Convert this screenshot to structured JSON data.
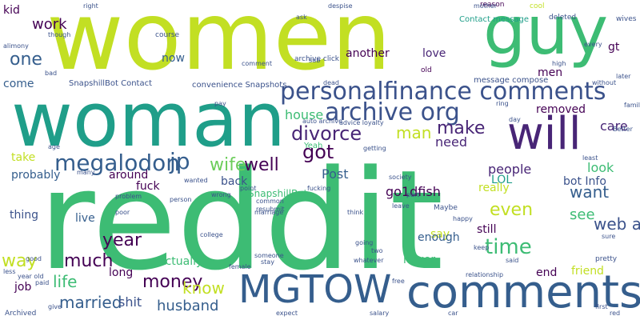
{
  "palette": {
    "yellow_green": "#c2df23",
    "green": "#3dbc74",
    "teal": "#1f9e89",
    "blue": "#355e8d",
    "purple": "#482576",
    "dark_purple": "#440154",
    "slate": "#3b528b",
    "light_green": "#6ccd5a"
  },
  "words": [
    {
      "text": "reddit",
      "color": "#3dbc74"
    },
    {
      "text": "women",
      "color": "#c2df23"
    },
    {
      "text": "woman",
      "color": "#1f9e89"
    },
    {
      "text": "guy",
      "color": "#3dbc74"
    },
    {
      "text": "comments",
      "color": "#355e8d"
    },
    {
      "text": "MGTOW",
      "color": "#355e8d"
    },
    {
      "text": "will",
      "color": "#482576"
    },
    {
      "text": "personalfinance comments",
      "color": "#3b528b"
    },
    {
      "text": "archive org",
      "color": "#3b528b"
    },
    {
      "text": "megalodon",
      "color": "#355e8d"
    },
    {
      "text": "jp",
      "color": "#355e8d"
    },
    {
      "text": "divorce",
      "color": "#482576"
    },
    {
      "text": "got",
      "color": "#440154"
    },
    {
      "text": "make",
      "color": "#482576"
    },
    {
      "text": "one",
      "color": "#355e8d"
    },
    {
      "text": "work",
      "color": "#440154"
    },
    {
      "text": "wife",
      "color": "#6ccd5a"
    },
    {
      "text": "well",
      "color": "#440154"
    },
    {
      "text": "man",
      "color": "#c2df23"
    },
    {
      "text": "house",
      "color": "#3dbc74"
    },
    {
      "text": "year",
      "color": "#440154"
    },
    {
      "text": "much",
      "color": "#440154"
    },
    {
      "text": "way",
      "color": "#c2df23"
    },
    {
      "text": "life",
      "color": "#3dbc74"
    },
    {
      "text": "money",
      "color": "#440154"
    },
    {
      "text": "know",
      "color": "#c2df23"
    },
    {
      "text": "married",
      "color": "#355e8d"
    },
    {
      "text": "shit",
      "color": "#3b528b"
    },
    {
      "text": "husband",
      "color": "#355e8d"
    },
    {
      "text": "time",
      "color": "#3dbc74"
    },
    {
      "text": "even",
      "color": "#c2df23"
    },
    {
      "text": "want",
      "color": "#355e8d"
    },
    {
      "text": "see",
      "color": "#3dbc74"
    },
    {
      "text": "web archive",
      "color": "#3b528b"
    },
    {
      "text": "people",
      "color": "#482576"
    },
    {
      "text": "look",
      "color": "#3dbc74"
    },
    {
      "text": "care",
      "color": "#482576"
    },
    {
      "text": "need",
      "color": "#482576"
    },
    {
      "text": "Post",
      "color": "#355e8d"
    },
    {
      "text": "go1dfish",
      "color": "#440154"
    },
    {
      "text": "bot Info",
      "color": "#3b528b"
    },
    {
      "text": "fuck",
      "color": "#440154"
    },
    {
      "text": "around",
      "color": "#440154"
    },
    {
      "text": "probably",
      "color": "#355e8d"
    },
    {
      "text": "thing",
      "color": "#3b528b"
    },
    {
      "text": "live",
      "color": "#355e8d"
    },
    {
      "text": "back",
      "color": "#3b528b"
    },
    {
      "text": "actually",
      "color": "#3dbc74"
    },
    {
      "text": "long",
      "color": "#440154"
    },
    {
      "text": "job",
      "color": "#440154"
    },
    {
      "text": "friend",
      "color": "#c2df23"
    },
    {
      "text": "end",
      "color": "#440154"
    },
    {
      "text": "still",
      "color": "#440154"
    },
    {
      "text": "say",
      "color": "#c2df23"
    },
    {
      "text": "never",
      "color": "#3dbc74"
    },
    {
      "text": "enough",
      "color": "#355e8d"
    },
    {
      "text": "really",
      "color": "#c2df23"
    },
    {
      "text": "LOL",
      "color": "#1f9e89"
    },
    {
      "text": "removed",
      "color": "#440154"
    },
    {
      "text": "another",
      "color": "#440154"
    },
    {
      "text": "love",
      "color": "#482576"
    },
    {
      "text": "men",
      "color": "#440154"
    },
    {
      "text": "gt",
      "color": "#440154"
    },
    {
      "text": "now",
      "color": "#355e8d"
    },
    {
      "text": "come",
      "color": "#355e8d"
    },
    {
      "text": "kid",
      "color": "#440154"
    },
    {
      "text": "take",
      "color": "#c2df23"
    },
    {
      "text": "SnapshillBot",
      "color": "#3dbc74"
    },
    {
      "text": "SnapshillBot Contact",
      "color": "#3b528b"
    },
    {
      "text": "convenience Snapshots",
      "color": "#3b528b"
    },
    {
      "text": "Contact message",
      "color": "#1f9e89"
    },
    {
      "text": "message compose",
      "color": "#3b528b"
    },
    {
      "text": "archive click",
      "color": "#3b528b"
    },
    {
      "text": "old",
      "color": "#440154"
    },
    {
      "text": "course",
      "color": "#3b528b"
    },
    {
      "text": "reason",
      "color": "#440154"
    },
    {
      "text": "deleted",
      "color": "#3b528b"
    },
    {
      "text": "wives",
      "color": "#3b528b"
    },
    {
      "text": "cool",
      "color": "#c2df23"
    },
    {
      "text": "mother",
      "color": "#3b528b"
    },
    {
      "text": "despise",
      "color": "#3b528b"
    },
    {
      "text": "ask",
      "color": "#3b528b"
    },
    {
      "text": "right",
      "color": "#3b528b"
    },
    {
      "text": "though",
      "color": "#3b528b"
    },
    {
      "text": "alimony",
      "color": "#3b528b"
    },
    {
      "text": "sub",
      "color": "#3b528b"
    },
    {
      "text": "comment",
      "color": "#3b528b"
    },
    {
      "text": "auto archive",
      "color": "#3b528b"
    },
    {
      "text": "advice loyalty",
      "color": "#3b528b"
    },
    {
      "text": "Yeah",
      "color": "#3dbc74"
    },
    {
      "text": "fucking",
      "color": "#3b528b"
    },
    {
      "text": "society",
      "color": "#3b528b"
    },
    {
      "text": "getting",
      "color": "#3b528b"
    },
    {
      "text": "leave",
      "color": "#3b528b"
    },
    {
      "text": "part",
      "color": "#3b528b"
    },
    {
      "text": "Maybe",
      "color": "#3b528b"
    },
    {
      "text": "happy",
      "color": "#3b528b"
    },
    {
      "text": "keep",
      "color": "#3b528b"
    },
    {
      "text": "pretty",
      "color": "#3b528b"
    },
    {
      "text": "sure",
      "color": "#3b528b"
    },
    {
      "text": "said",
      "color": "#3b528b"
    },
    {
      "text": "Better",
      "color": "#3b528b"
    },
    {
      "text": "family",
      "color": "#3b528b"
    },
    {
      "text": "later",
      "color": "#3b528b"
    },
    {
      "text": "without",
      "color": "#3b528b"
    },
    {
      "text": "high",
      "color": "#3b528b"
    },
    {
      "text": "every",
      "color": "#3b528b"
    },
    {
      "text": "ring",
      "color": "#3b528b"
    },
    {
      "text": "least",
      "color": "#3b528b"
    },
    {
      "text": "resubmit",
      "color": "#3b528b"
    },
    {
      "text": "wanted",
      "color": "#3b528b"
    },
    {
      "text": "many",
      "color": "#3b528b"
    },
    {
      "text": "problem",
      "color": "#3b528b"
    },
    {
      "text": "poor",
      "color": "#3b528b"
    },
    {
      "text": "wrong",
      "color": "#3b528b"
    },
    {
      "text": "college",
      "color": "#3b528b"
    },
    {
      "text": "good",
      "color": "#3b528b"
    },
    {
      "text": "someone",
      "color": "#3b528b"
    },
    {
      "text": "stay",
      "color": "#3b528b"
    },
    {
      "text": "two",
      "color": "#3b528b"
    },
    {
      "text": "whatever",
      "color": "#3b528b"
    },
    {
      "text": "going",
      "color": "#3b528b"
    },
    {
      "text": "think",
      "color": "#3b528b"
    },
    {
      "text": "marriage",
      "color": "#3b528b"
    },
    {
      "text": "common",
      "color": "#3b528b"
    },
    {
      "text": "point",
      "color": "#3b528b"
    },
    {
      "text": "relationship",
      "color": "#3b528b"
    },
    {
      "text": "free",
      "color": "#3b528b"
    },
    {
      "text": "expect",
      "color": "#3b528b"
    },
    {
      "text": "salary",
      "color": "#3b528b"
    },
    {
      "text": "car",
      "color": "#3b528b"
    },
    {
      "text": "first",
      "color": "#3b528b"
    },
    {
      "text": "red",
      "color": "#3b528b"
    },
    {
      "text": "Archived",
      "color": "#3b528b"
    },
    {
      "text": "give",
      "color": "#3b528b"
    },
    {
      "text": "paid",
      "color": "#3b528b"
    },
    {
      "text": "less",
      "color": "#3b528b"
    },
    {
      "text": "year old",
      "color": "#3b528b"
    },
    {
      "text": "age",
      "color": "#3b528b"
    },
    {
      "text": "dead",
      "color": "#3b528b"
    },
    {
      "text": "bad",
      "color": "#3b528b"
    },
    {
      "text": "day",
      "color": "#3b528b"
    },
    {
      "text": "pay",
      "color": "#3b528b"
    },
    {
      "text": "female",
      "color": "#3b528b"
    },
    {
      "text": "person",
      "color": "#3b528b"
    }
  ]
}
